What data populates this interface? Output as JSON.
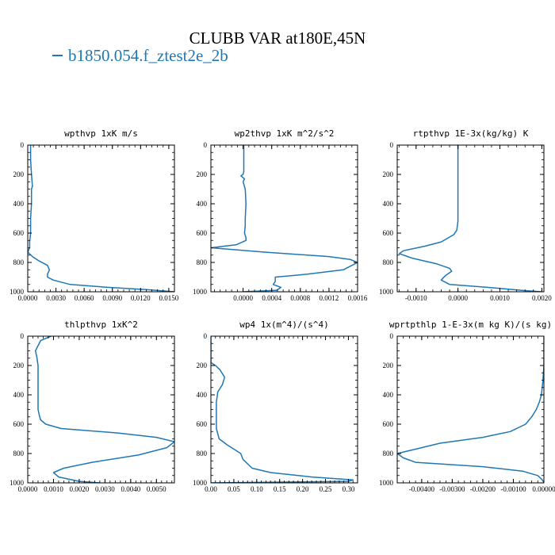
{
  "title": "CLUBB VAR at180E,45N",
  "legend": {
    "series_name": "b1850.054.f_ztest2e_2b",
    "color": "#1f77b4"
  },
  "chart_data": [
    {
      "type": "line",
      "title": "wpthvp  1xK m/s",
      "ylim": [
        1000,
        0
      ],
      "yticks": [
        0,
        200,
        400,
        600,
        800,
        1000
      ],
      "ytick_labels": [
        "0",
        "200",
        "400",
        "600",
        "800",
        "1000"
      ],
      "xlim": [
        0,
        0.0156
      ],
      "xticks": [
        0,
        0.003,
        0.006,
        0.009,
        0.012,
        0.015
      ],
      "xtick_labels": [
        "0.0000",
        "0.0030",
        "0.0060",
        "0.0090",
        "0.0120",
        "0.0150"
      ],
      "series": [
        {
          "name": "b1850.054.f_ztest2e_2b",
          "x": [
            0.0003,
            0.0003,
            0.0004,
            0.0005,
            0.0004,
            0.0004,
            0.0003,
            0.0003,
            0.0002,
            0.0002,
            0.0,
            0.0005,
            0.0012,
            0.0021,
            0.0023,
            0.0021,
            0.0021,
            0.0027,
            0.0045,
            0.0085,
            0.0126,
            0.0156
          ],
          "y": [
            0,
            100,
            200,
            280,
            300,
            400,
            500,
            600,
            660,
            700,
            730,
            760,
            790,
            820,
            850,
            880,
            900,
            920,
            950,
            970,
            985,
            1000
          ]
        }
      ]
    },
    {
      "type": "line",
      "title": "wp2thvp  1xK m^2/s^2",
      "ylim": [
        1000,
        0
      ],
      "yticks": [
        0,
        200,
        400,
        600,
        800,
        1000
      ],
      "ytick_labels": [
        "0",
        "200",
        "400",
        "600",
        "800",
        "1000"
      ],
      "xlim": [
        -0.00045,
        0.0016
      ],
      "xticks": [
        0,
        0.0004,
        0.0008,
        0.0012,
        0.0016
      ],
      "xtick_labels": [
        "0.0000",
        "0.0004",
        "0.0008",
        "0.0012",
        "0.0016"
      ],
      "series": [
        {
          "name": "b1850.054.f_ztest2e_2b",
          "x": [
            1e-05,
            1e-05,
            1e-05,
            0.0,
            -3e-05,
            2e-05,
            0.0,
            3e-05,
            4e-05,
            3e-05,
            3e-05,
            2e-05,
            4e-05,
            4e-05,
            -0.0001,
            -0.00045,
            0.0003,
            0.0012,
            0.0015,
            0.0016,
            0.0014,
            0.0009,
            0.00045,
            0.00045,
            0.00042,
            0.00053,
            0.00047,
            0.0
          ],
          "y": [
            0,
            100,
            180,
            200,
            210,
            230,
            250,
            300,
            400,
            500,
            550,
            600,
            630,
            650,
            680,
            700,
            730,
            760,
            780,
            800,
            850,
            880,
            900,
            930,
            950,
            970,
            990,
            1000
          ]
        }
      ]
    },
    {
      "type": "line",
      "title": "rtpthvp  1E-3x(kg/kg) K",
      "ylim": [
        1000,
        0
      ],
      "yticks": [
        0,
        200,
        400,
        600,
        800,
        1000
      ],
      "ytick_labels": [
        "0",
        "200",
        "400",
        "600",
        "800",
        "1000"
      ],
      "xlim": [
        -0.00145,
        0.00205
      ],
      "xticks": [
        -0.001,
        0,
        0.001,
        0.002
      ],
      "xtick_labels": [
        "-0.0010",
        "0.0000",
        "0.0010",
        "0.0020"
      ],
      "series": [
        {
          "name": "b1850.054.f_ztest2e_2b",
          "x": [
            0.0,
            0.0,
            0.0,
            0.0,
            -3e-05,
            -0.0001,
            -0.0004,
            -0.0008,
            -0.0013,
            -0.0014,
            -0.0011,
            -0.0005,
            -0.0002,
            -0.00015,
            -0.0003,
            -0.0004,
            -0.0002,
            0.0007,
            0.0015,
            0.002
          ],
          "y": [
            0,
            200,
            400,
            520,
            580,
            610,
            660,
            690,
            720,
            740,
            770,
            810,
            840,
            860,
            890,
            920,
            950,
            970,
            990,
            1000
          ]
        }
      ]
    },
    {
      "type": "line",
      "title": "thlpthvp  1xK^2",
      "ylim": [
        1000,
        0
      ],
      "yticks": [
        0,
        200,
        400,
        600,
        800,
        1000
      ],
      "ytick_labels": [
        "0",
        "200",
        "400",
        "600",
        "800",
        "1000"
      ],
      "xlim": [
        0,
        0.0057
      ],
      "xticks": [
        0,
        0.001,
        0.002,
        0.003,
        0.004,
        0.005
      ],
      "xtick_labels": [
        "0.0000",
        "0.0010",
        "0.0020",
        "0.0030",
        "0.0040",
        "0.0050"
      ],
      "series": [
        {
          "name": "b1850.054.f_ztest2e_2b",
          "x": [
            0.0009,
            0.0005,
            0.0003,
            0.00035,
            0.0004,
            0.0004,
            0.0004,
            0.0004,
            0.00045,
            0.0005,
            0.0007,
            0.0013,
            0.0035,
            0.005,
            0.0057,
            0.0054,
            0.0043,
            0.0025,
            0.0014,
            0.001,
            0.0012,
            0.002,
            0.0028
          ],
          "y": [
            0,
            30,
            100,
            140,
            200,
            300,
            400,
            500,
            540,
            570,
            600,
            630,
            660,
            690,
            720,
            760,
            810,
            860,
            900,
            930,
            960,
            990,
            1000
          ]
        }
      ]
    },
    {
      "type": "line",
      "title": "wp4  1x(m^4)/(s^4)",
      "ylim": [
        1000,
        0
      ],
      "yticks": [
        0,
        200,
        400,
        600,
        800,
        1000
      ],
      "ytick_labels": [
        "0",
        "200",
        "400",
        "600",
        "800",
        "1000"
      ],
      "xlim": [
        0,
        0.32
      ],
      "xticks": [
        0,
        0.05,
        0.1,
        0.15,
        0.2,
        0.25,
        0.3
      ],
      "xtick_labels": [
        "0.00",
        "0.05",
        "0.10",
        "0.15",
        "0.20",
        "0.25",
        "0.30"
      ],
      "series": [
        {
          "name": "b1850.054.f_ztest2e_2b",
          "x": [
            0.0,
            0.0,
            0.01,
            0.02,
            0.03,
            0.025,
            0.015,
            0.012,
            0.012,
            0.012,
            0.012,
            0.018,
            0.035,
            0.055,
            0.065,
            0.07,
            0.09,
            0.13,
            0.22,
            0.31,
            0.3,
            0.0
          ],
          "y": [
            0,
            180,
            200,
            230,
            280,
            330,
            380,
            450,
            500,
            560,
            630,
            700,
            740,
            780,
            800,
            840,
            900,
            930,
            960,
            980,
            990,
            1000
          ]
        }
      ]
    },
    {
      "type": "line",
      "title": "wprtpthlp  1-E-3x(m kg K)/(s kg)",
      "ylim": [
        1000,
        0
      ],
      "yticks": [
        0,
        200,
        400,
        600,
        800,
        1000
      ],
      "ytick_labels": [
        "0",
        "200",
        "400",
        "600",
        "800",
        "1000"
      ],
      "xlim": [
        -0.0048,
        0.0
      ],
      "xticks": [
        -0.004,
        -0.003,
        -0.002,
        -0.001,
        0
      ],
      "xtick_labels": [
        "-0.00400",
        "-0.00300",
        "-0.00200",
        "-0.00100",
        "0.00000"
      ],
      "series": [
        {
          "name": "b1850.054.f_ztest2e_2b",
          "x": [
            0.0,
            0.0,
            -3e-05,
            -8e-05,
            -0.00015,
            -0.00025,
            -0.0004,
            -0.0006,
            -0.0011,
            -0.002,
            -0.0034,
            -0.0042,
            -0.0048,
            -0.0046,
            -0.0042,
            -0.002,
            -0.0007,
            -0.0002,
            -5e-05,
            0.0
          ],
          "y": [
            0,
            200,
            300,
            400,
            450,
            500,
            550,
            600,
            650,
            690,
            730,
            770,
            800,
            830,
            860,
            890,
            920,
            950,
            980,
            1000
          ]
        }
      ]
    }
  ]
}
